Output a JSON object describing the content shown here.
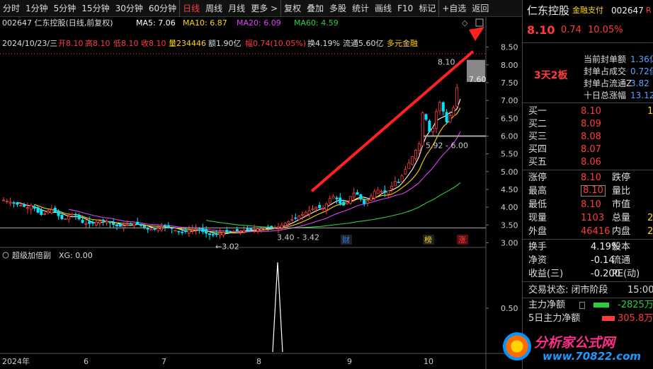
{
  "toolbar": {
    "items": [
      {
        "label": "分时"
      },
      {
        "label": "1分钟"
      },
      {
        "label": "5分钟"
      },
      {
        "label": "15分钟"
      },
      {
        "label": "30分钟"
      },
      {
        "label": "60分钟"
      },
      {
        "label": "日线",
        "active": true
      },
      {
        "label": "周线"
      },
      {
        "label": "月线"
      },
      {
        "label": "更多 >"
      },
      {
        "label": "复权"
      },
      {
        "label": "叠加"
      },
      {
        "label": "多股"
      },
      {
        "label": "统计"
      },
      {
        "label": "画线"
      },
      {
        "label": "F10"
      },
      {
        "label": "标记"
      },
      {
        "label": "+自选"
      },
      {
        "label": "返回"
      }
    ]
  },
  "chart_header": {
    "code_name": "002647 仁东控股(日线,前复权)",
    "ma5": "MA5: 7.06",
    "ma10": "MA10: 6.87",
    "ma20": "MA20: 6.09",
    "ma60": "MA60: 4.59",
    "info_date": "2024/10/23/三",
    "info_open": "开8.10",
    "info_high": "高8.10",
    "info_low": "低8.10",
    "info_close": "收8.10",
    "info_vol": "量234446",
    "info_amt": "额1.90亿",
    "info_amp": "幅0.74(10.05%)",
    "info_turn": "换4.19%",
    "info_float": "流通5.60亿",
    "info_concept": "多元金融"
  },
  "colors": {
    "ma5": "#ffffff",
    "ma10": "#ffd400",
    "ma20": "#e040fb",
    "ma60": "#2ecc40",
    "up": "#ff3b3b",
    "down": "#00e5ff",
    "arrow": "#ff2020"
  },
  "chart_data": {
    "type": "candlestick",
    "price_axis": {
      "ticks": [
        "8.50",
        "8.00",
        "7.50",
        "7.00",
        "6.50",
        "6.00",
        "5.50",
        "5.00",
        "4.50",
        "4.00",
        "3.50",
        "3.00"
      ],
      "range": [
        2.95,
        8.75
      ]
    },
    "x_labels": [
      "2024年",
      "6",
      "7",
      "8",
      "9",
      "10"
    ],
    "annotations": {
      "low_label": "3.02",
      "high_label": "8.10",
      "mid_label": "7.60",
      "range1": "3.40 - 3.42",
      "range2": "5.92 - 6.00"
    },
    "markers": [
      "财",
      "榜",
      "涨"
    ],
    "sub_indicator": {
      "title": "超级加倍副",
      "xg": "XG: 0.00",
      "tick": "0.50"
    }
  },
  "right_panel": {
    "stock_name": "仁东控股",
    "tag": "金融支付",
    "code": "002647",
    "badge": "R",
    "price": "8.10",
    "change": "0.74",
    "pct": "10.05%",
    "streak": "3天2板",
    "seal_rows": [
      {
        "label": "当前封单额",
        "value": "1.36亿"
      },
      {
        "label": "封单占成交",
        "value": "0.72倍"
      },
      {
        "label": "封单占流通Z",
        "value": "3.82"
      },
      {
        "label": "十日总涨幅",
        "value": "13.12"
      }
    ],
    "bids": [
      {
        "label": "买一",
        "price": "8.10",
        "vol": "1"
      },
      {
        "label": "买二",
        "price": "8.09",
        "vol": ""
      },
      {
        "label": "买三",
        "price": "8.08",
        "vol": ""
      },
      {
        "label": "买四",
        "price": "8.07",
        "vol": ""
      },
      {
        "label": "买五",
        "price": "8.06",
        "vol": ""
      }
    ],
    "stats": [
      {
        "l1": "涨停",
        "v1": "8.10",
        "l2": "跌停",
        "v2": ""
      },
      {
        "l1": "最高",
        "v1": "8.10",
        "l2": "量比",
        "v2": ""
      },
      {
        "l1": "最低",
        "v1": "8.10",
        "l2": "市值",
        "v2": ""
      },
      {
        "l1": "现量",
        "v1": "1103",
        "l2": "总量",
        "v2": "2"
      },
      {
        "l1": "外盘",
        "v1": "46416",
        "l2": "内盘",
        "v2": "2"
      }
    ],
    "fin": [
      {
        "l1": "换手",
        "v1": "4.19%",
        "l2": "股本"
      },
      {
        "l1": "净资",
        "v1": "-0.14",
        "l2": "流通"
      },
      {
        "l1": "收益(三)",
        "v1": "-0.200",
        "l2": "PE(动)"
      }
    ],
    "trade_status": "交易状态: 闭市阶段",
    "trade_time": "15:00",
    "main_net": "主力净额",
    "main_net_val": "-2825万",
    "main_net5": "5日主力净额",
    "main_net5_val": "305.8万",
    "watermark": "分析家公式网",
    "watermark_url": "www.70822.com"
  }
}
